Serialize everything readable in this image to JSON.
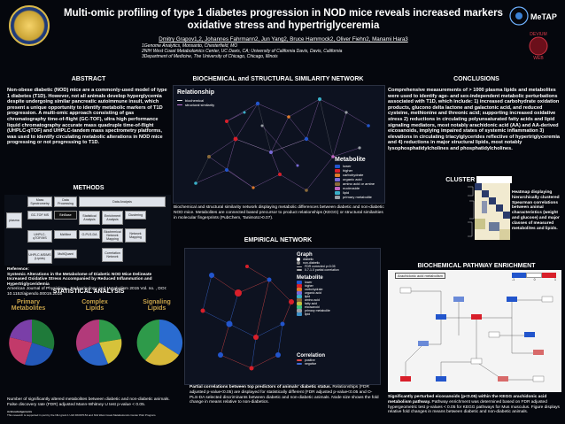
{
  "title_line1": "Multi-omic profiling of type 1 diabetes progression in NOD mice reveals increased markers",
  "title_line2": "oxidative stress and hypertriglyceremia",
  "authors": "Dmitry Grapov1,2, Johannes Fahrmann2, Jun Yang2, Bruce Hammock2, Oliver Fiehn2, Manami Hara3",
  "affiliations": [
    "1Genome Analytics, Monsanto, Chesterfield, MO",
    "2NIH West Coast Metabolomics Center, UC Davis, CA; University of California Davis, Davis, California",
    "3Department of Medicine, The University of Chicago, Chicago, Illinois"
  ],
  "logo_right_top": "DEVIUM",
  "logo_right_bottom": "WEB",
  "sections": {
    "abstract": "ABSTRACT",
    "methods": "METHODS",
    "statistical": "STATISTICAL ANALYSIS",
    "biochem_network": "BIOCHEMICAL and STRUCTURAL SIMILARITY NETWORK",
    "empirical_network": "EMPIRICAL NETWORK",
    "conclusions": "CONCLUSIONS",
    "cluster": "CLUSTER ANALYSIS",
    "pathway": "BIOCHEMICAL PATHWAY ENRICHMENT"
  },
  "abstract_text": "Non-obese diabetic (NOD) mice are a commonly-used model of type 1 diabetes (T1D). However, not all animals develop hyperglycemia despite undergoing similar pancreatic autoimmune insult, which present a unique opportunity to identify metabolic markers of T1D progression. A multi-omic approach consisting of gas chromatography time-of-flight (GC-TOF), ultra high performance liquid chromatography accurate mass quadruple time-of-flight (UHPLC-qTOF) and UHPLC-tandem mass spectrometry platforms, was used to identify circulating metabolic alterations in NOD mice progressing or not progressing to T1D.",
  "methods_headers": [
    "Mass Spectrometry",
    "Data Processing",
    "Data Analysis"
  ],
  "methods_boxes": {
    "plasma": "plasma",
    "gctof": "GC-TOF MS",
    "binbase": "BinBase",
    "stat": "Statistical Analysis",
    "enrich": "Enrichment Analysis",
    "clust": "Clustering",
    "uhplc1": "UHPLC-qTOF/MS",
    "mzmine": "MzMine",
    "opls": "O-PLS-DA",
    "biochem": "Biochemical Network Mapping",
    "netmap": "Network Mapping",
    "uhplc2": "UHPLC-MS/MS (Lipids)",
    "mq": "MultiQuant",
    "corr": "Correlation Network"
  },
  "reference_label": "Reference:",
  "reference_text": "Systemic Alterations in the Metabolome of Diabetic NOD Mice Delineate Increased Oxidative Stress Accompanied by Reduced Inflammation and Hypertriglyceridemia",
  "reference_journal": "American Journal of Physiology - Endocrinology and Metabolism 2015 Vol. no. , DOI: 10.1152/ajpendo.00019.2015",
  "pie_titles": [
    "Primary Metabolites",
    "Complex Lipids",
    "Signaling Lipids"
  ],
  "stat_caption": "Number of significantly altered metabolites between diabetic and non-diabetic animals. False discovery rate (FDR) adjusted Mann-Whitney U test p-value < 0.05.",
  "acknowledgements_label": "Acknowledgements",
  "acknowledgements_text": "This research is supported in part by the NIH grant 1 U24 DK097154 and NIH West Coast Metabolomics Center Pilot Program.",
  "network_relationship_title": "Relationship",
  "network_relationship_legend": [
    "biochemical",
    "structural similarity"
  ],
  "metabolite_legend_title": "Metabolite",
  "metabolite_legend": [
    {
      "label": "lower",
      "color": "#2255cc"
    },
    {
      "label": "higher",
      "color": "#d81f2a"
    },
    {
      "label": "carbohydrate",
      "color": "#e07b2a"
    },
    {
      "label": "organic acid",
      "color": "#7a6ad8"
    },
    {
      "label": "amino acid or amine",
      "color": "#8a6a3a"
    },
    {
      "label": "nucleoside",
      "color": "#c066c0"
    },
    {
      "label": "lipid",
      "color": "#3ab0c8"
    },
    {
      "label": "primary metabolite",
      "color": "#9aa0a6"
    }
  ],
  "network_caption": "Biochemical and structural similarity network displaying metabolic differences between diabetic and non-diabetic NOD mice. Metabolites are connected based precursor to product relationships (KEGG) or structural similarities in molecular fingerprints (PubChem, Tanimoto>0.07).",
  "empirical_graph_title": "Graph",
  "empirical_graph_legend": [
    "diabetic",
    "non-diabetic",
    "FDR corrected p<0.05",
    "0.7-1.0 partial correlation"
  ],
  "empirical_metabolite_title": "Metabolite",
  "empirical_metabolite_legend": [
    "lower",
    "higher",
    "carbohydrate",
    "organic acid",
    "lipid",
    "amino acid",
    "fatty acid",
    "eicosanoid",
    "primary metabolite",
    "lipid"
  ],
  "empirical_correlation_title": "Correlation",
  "empirical_correlation_legend": [
    "positive",
    "negative"
  ],
  "empirical_caption_bold": "Partial correlations between top predictors of animals' diabetic status.",
  "empirical_caption": " Relationships (FDR adjusted p-value<0.05) are displayed for statistically different (FDR adjusted p-value<0.05 and O-PLS-DA selected discriminants between diabetic and non-diabetic animals. Node size shows the fold change in means relative to non-diabetics.",
  "conclusions_text": "Comprehensive measurements of > 1000 plasma lipids and metabolites were used to identify age- and sex-independent metabolic perturbations associated with T1D, which include: 1) increased carbohydrate oxidation products, glucono delta lactone and galactonic acid, and reduced cysteine, methionine and threonic acid; supporting increased oxidative stress 2) reductions in circulating polyunsaturated fatty acids and lipid signaling mediators, most notably arachidonic acid (AA) and AA-derived eicosanoids, implying impaired states of systemic inflammation 3) elevations in circulating triacylglycerides reflective of hypertriglyceremia and 4) reductions in major structural lipids, most notably lysophosphatidylcholines and phosphatidylcholines.",
  "heatmap_caption": "Heatmap displaying hierarchically clustered Spearman correlations between animal characteristics (weight and glucose) and major classes of measured metabolites and lipids.",
  "pathway_caption_bold": "Significantly perturbed eicosanoids (p<0.05) within the KEGG arachidonic acid metabolism pathway.",
  "pathway_caption": " Pathway enrichment was determined based on FDR adjusted hypergeometric test p-values < 0.05 for KEGG pathways for Mus musculus. Figure displays relative fold changes in means between diabetic and non-diabetic animals.",
  "pathway_scale": [
    "-1",
    "0",
    "1"
  ],
  "pathway_header": "Arachidonic acid metabolism"
}
